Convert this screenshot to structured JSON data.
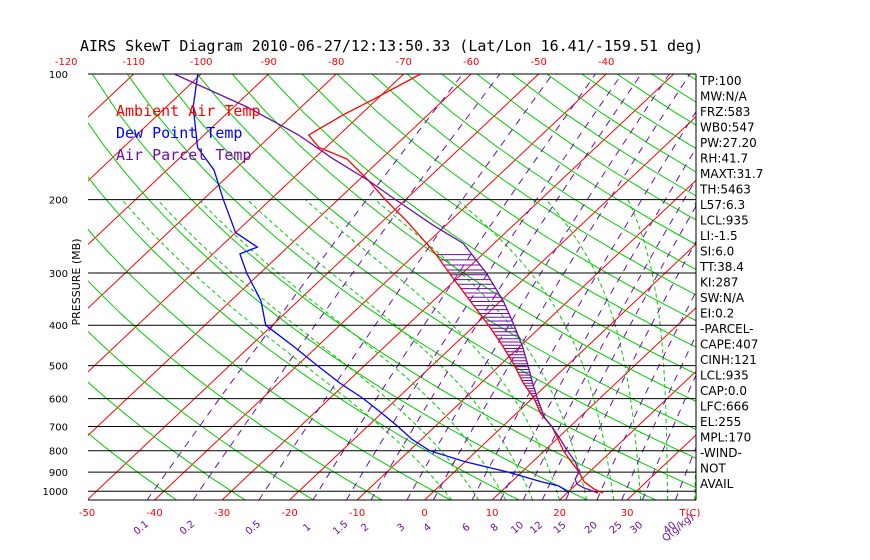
{
  "chart_data": {
    "type": "line",
    "chart_kind": "skew-t log-p diagram",
    "title": "AIRS SkewT Diagram 2010-06-27/12:13:50.33 (Lat/Lon 16.41/-159.51 deg)",
    "ylabel": "PRESSURE (MB)",
    "y_scale": "log",
    "ylim": [
      1050,
      100
    ],
    "pressure_ticks": [
      100,
      200,
      300,
      400,
      500,
      600,
      700,
      800,
      900,
      1000
    ],
    "top_temp_ticks": [
      "-120",
      "-110",
      "-100",
      "-90",
      "-80",
      "-70",
      "-60",
      "-50",
      "-40"
    ],
    "top_temp_values": [
      -120,
      -110,
      -100,
      -90,
      -80,
      -70,
      -60,
      -50,
      -40
    ],
    "bottom_temp_ticks": [
      "-50",
      "-40",
      "-30",
      "-20",
      "-10",
      "0",
      "10",
      "20",
      "30",
      "T(C)"
    ],
    "bottom_temp_values": [
      -50,
      -40,
      -30,
      -20,
      -10,
      0,
      10,
      20,
      30
    ],
    "mixing_ratio_ticks": [
      "0.1",
      "0.2",
      "0.5",
      "1",
      "1.5",
      "2",
      "3",
      "4",
      "6",
      "8",
      "10",
      "12",
      "15",
      "20",
      "25",
      "30",
      "40",
      "Q(g/kg)"
    ],
    "mixing_ratio_values": [
      0.1,
      0.2,
      0.5,
      1,
      1.5,
      2,
      3,
      4,
      6,
      8,
      10,
      12,
      15,
      20,
      25,
      30,
      40
    ],
    "series": [
      {
        "name": "Ambient Air Temp",
        "color": "#ff0000",
        "points": [
          [
            1010,
            25.3
          ],
          [
            990,
            23.5
          ],
          [
            950,
            20.8
          ],
          [
            900,
            18.5
          ],
          [
            850,
            15.7
          ],
          [
            800,
            12.8
          ],
          [
            750,
            10.2
          ],
          [
            700,
            7.3
          ],
          [
            650,
            3.5
          ],
          [
            600,
            0.3
          ],
          [
            550,
            -3.8
          ],
          [
            500,
            -7.8
          ],
          [
            450,
            -12.5
          ],
          [
            400,
            -18
          ],
          [
            350,
            -24.5
          ],
          [
            300,
            -32
          ],
          [
            270,
            -37
          ],
          [
            250,
            -41
          ],
          [
            225,
            -46.5
          ],
          [
            200,
            -53
          ],
          [
            180,
            -58.5
          ],
          [
            160,
            -65
          ],
          [
            150,
            -71
          ],
          [
            140,
            -74.5
          ],
          [
            125,
            -72.5
          ],
          [
            115,
            -70.5
          ],
          [
            100,
            -67.5
          ]
        ]
      },
      {
        "name": "Dew Point Temp",
        "color": "#0000ff",
        "points": [
          [
            1010,
            20.3
          ],
          [
            990,
            19
          ],
          [
            970,
            17.5
          ],
          [
            950,
            14.5
          ],
          [
            900,
            8
          ],
          [
            850,
            0
          ],
          [
            800,
            -7
          ],
          [
            750,
            -11.5
          ],
          [
            700,
            -15.5
          ],
          [
            650,
            -20
          ],
          [
            600,
            -25
          ],
          [
            550,
            -31
          ],
          [
            500,
            -37
          ],
          [
            450,
            -43.5
          ],
          [
            400,
            -51
          ],
          [
            350,
            -55.5
          ],
          [
            300,
            -62
          ],
          [
            270,
            -66
          ],
          [
            260,
            -64.5
          ],
          [
            240,
            -70
          ],
          [
            200,
            -77
          ],
          [
            170,
            -83
          ],
          [
            150,
            -89
          ],
          [
            120,
            -96
          ],
          [
            100,
            -100.5
          ]
        ]
      },
      {
        "name": "Air Parcel Temp",
        "color": "#6b0fa8",
        "points": [
          [
            1010,
            24.6
          ],
          [
            980,
            21.5
          ],
          [
            960,
            20
          ],
          [
            935,
            19
          ],
          [
            900,
            18.5
          ],
          [
            850,
            16.3
          ],
          [
            800,
            13.4
          ],
          [
            750,
            10.5
          ],
          [
            700,
            7.3
          ],
          [
            666,
            4.8
          ],
          [
            600,
            0.8
          ],
          [
            550,
            -2.4
          ],
          [
            500,
            -5.8
          ],
          [
            450,
            -9.6
          ],
          [
            400,
            -14.2
          ],
          [
            350,
            -19.6
          ],
          [
            300,
            -26.5
          ],
          [
            255,
            -34.5
          ],
          [
            230,
            -42
          ],
          [
            200,
            -51.5
          ],
          [
            180,
            -58.5
          ],
          [
            160,
            -67
          ],
          [
            140,
            -76
          ],
          [
            120,
            -88
          ],
          [
            100,
            -104
          ]
        ]
      }
    ],
    "indices": [
      "TP:100",
      "MW:N/A",
      "FRZ:583",
      "WB0:547",
      "PW:27.20",
      "RH:41.7",
      "MAXT:31.7",
      "TH:5463",
      "L57:6.3",
      "LCL:935",
      "LI:-1.5",
      "SI:6.0",
      "TT:38.4",
      "KI:287",
      "SW:N/A",
      "EI:0.2",
      "-PARCEL-",
      "CAPE:407",
      "CINH:121",
      "LCL:935",
      "CAP:0.0",
      "LFC:666",
      "EL:255",
      "MPL:170",
      "-WIND-",
      "NOT",
      "AVAIL"
    ],
    "colors": {
      "isotherm": "#ff0000",
      "dry_adiabat": "#00cc00",
      "moist_adiabat": "#00cc00",
      "mixing_ratio": "#6b0fa8",
      "isobar": "#000000"
    }
  }
}
